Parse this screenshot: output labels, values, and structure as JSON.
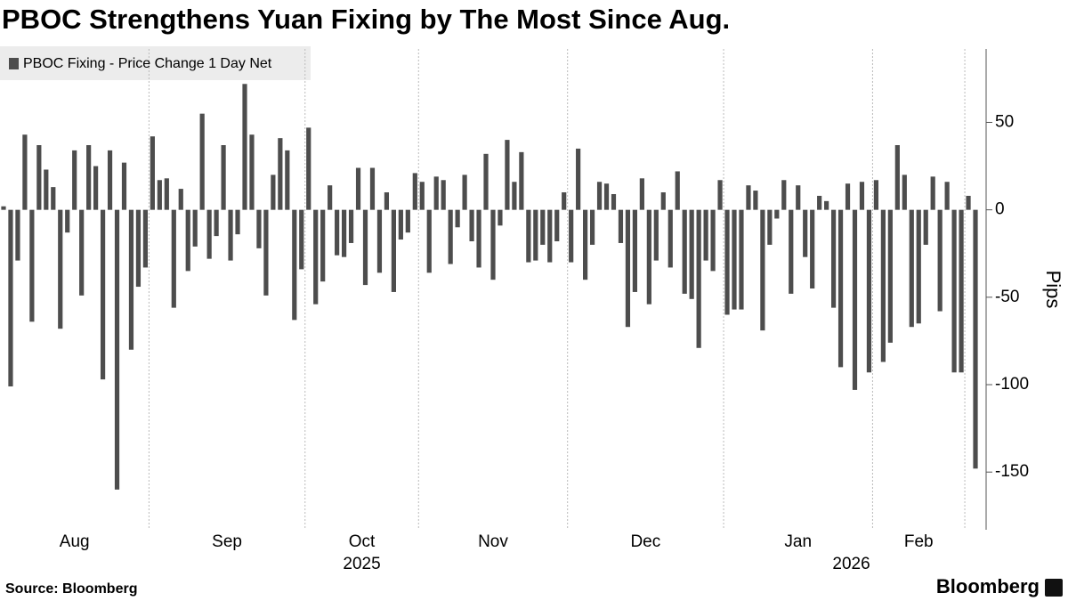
{
  "chart_data": {
    "type": "bar",
    "title": "PBOC Strengthens Yuan Fixing by The Most Since Aug.",
    "y_label": "Pips",
    "source": "Source: Bloomberg",
    "logo": "Bloomberg",
    "categories": [
      "Aug",
      "Aug",
      "Aug",
      "Aug",
      "Aug",
      "Aug",
      "Aug",
      "Aug",
      "Aug",
      "Aug",
      "Aug",
      "Aug",
      "Aug",
      "Aug",
      "Aug",
      "Aug",
      "Aug",
      "Aug",
      "Aug",
      "Aug",
      "Aug",
      "Sep",
      "Sep",
      "Sep",
      "Sep",
      "Sep",
      "Sep",
      "Sep",
      "Sep",
      "Sep",
      "Sep",
      "Sep",
      "Sep",
      "Sep",
      "Sep",
      "Sep",
      "Sep",
      "Sep",
      "Sep",
      "Sep",
      "Sep",
      "Sep",
      "Sep",
      "Oct",
      "Oct",
      "Oct",
      "Oct",
      "Oct",
      "Oct",
      "Oct",
      "Oct",
      "Oct",
      "Oct",
      "Oct",
      "Oct",
      "Oct",
      "Oct",
      "Oct",
      "Oct",
      "Nov",
      "Nov",
      "Nov",
      "Nov",
      "Nov",
      "Nov",
      "Nov",
      "Nov",
      "Nov",
      "Nov",
      "Nov",
      "Nov",
      "Nov",
      "Nov",
      "Nov",
      "Nov",
      "Nov",
      "Nov",
      "Nov",
      "Nov",
      "Nov",
      "Dec",
      "Dec",
      "Dec",
      "Dec",
      "Dec",
      "Dec",
      "Dec",
      "Dec",
      "Dec",
      "Dec",
      "Dec",
      "Dec",
      "Dec",
      "Dec",
      "Dec",
      "Dec",
      "Dec",
      "Dec",
      "Dec",
      "Dec",
      "Dec",
      "Dec",
      "Jan",
      "Jan",
      "Jan",
      "Jan",
      "Jan",
      "Jan",
      "Jan",
      "Jan",
      "Jan",
      "Jan",
      "Jan",
      "Jan",
      "Jan",
      "Jan",
      "Jan",
      "Jan",
      "Jan",
      "Jan",
      "Jan",
      "Jan",
      "Jan",
      "Feb",
      "Feb",
      "Feb",
      "Feb",
      "Feb",
      "Feb",
      "Feb",
      "Feb",
      "Feb",
      "Feb",
      "Feb",
      "Feb",
      "Feb",
      null,
      null
    ],
    "year_labels": [
      {
        "label": "2025",
        "from": "Aug"
      },
      {
        "label": "2026",
        "from": "Jan"
      }
    ],
    "series": [
      {
        "name": "PBOC Fixing - Price Change 1 Day Net",
        "color": "#4d4d4d",
        "values": [
          2,
          -101,
          -29,
          43,
          -64,
          37,
          23,
          13,
          -68,
          -13,
          34,
          -49,
          37,
          25,
          -97,
          34,
          -160,
          27,
          -80,
          -44,
          -33,
          42,
          17,
          18,
          -56,
          12,
          -35,
          -21,
          55,
          -28,
          -15,
          37,
          -29,
          -14,
          72,
          43,
          -22,
          -49,
          20,
          41,
          34,
          -63,
          -34,
          47,
          -54,
          -41,
          14,
          -26,
          -27,
          -19,
          24,
          -43,
          24,
          -36,
          10,
          -47,
          -17,
          -13,
          21,
          16,
          -36,
          19,
          17,
          -31,
          -10,
          20,
          -18,
          -33,
          32,
          -40,
          -9,
          40,
          16,
          33,
          -30,
          -29,
          -20,
          -30,
          -18,
          10,
          -30,
          35,
          -40,
          -20,
          16,
          15,
          9,
          -19,
          -67,
          -47,
          18,
          -54,
          -29,
          10,
          -33,
          22,
          -48,
          -51,
          -79,
          -29,
          -35,
          17,
          -60,
          -57,
          -57,
          14,
          11,
          -69,
          -20,
          -5,
          17,
          -48,
          14,
          -27,
          -45,
          8,
          5,
          -56,
          -90,
          15,
          -103,
          16,
          -93,
          17,
          -87,
          -76,
          37,
          20,
          -67,
          -65,
          -20,
          19,
          -58,
          16,
          -93,
          -93,
          8,
          -148
        ]
      }
    ],
    "ylim": [
      -183,
      92
    ],
    "yticks": [
      -150,
      -100,
      -50,
      0,
      50
    ],
    "y_axis_side": "right",
    "legend": "top-left",
    "grid": "x"
  }
}
